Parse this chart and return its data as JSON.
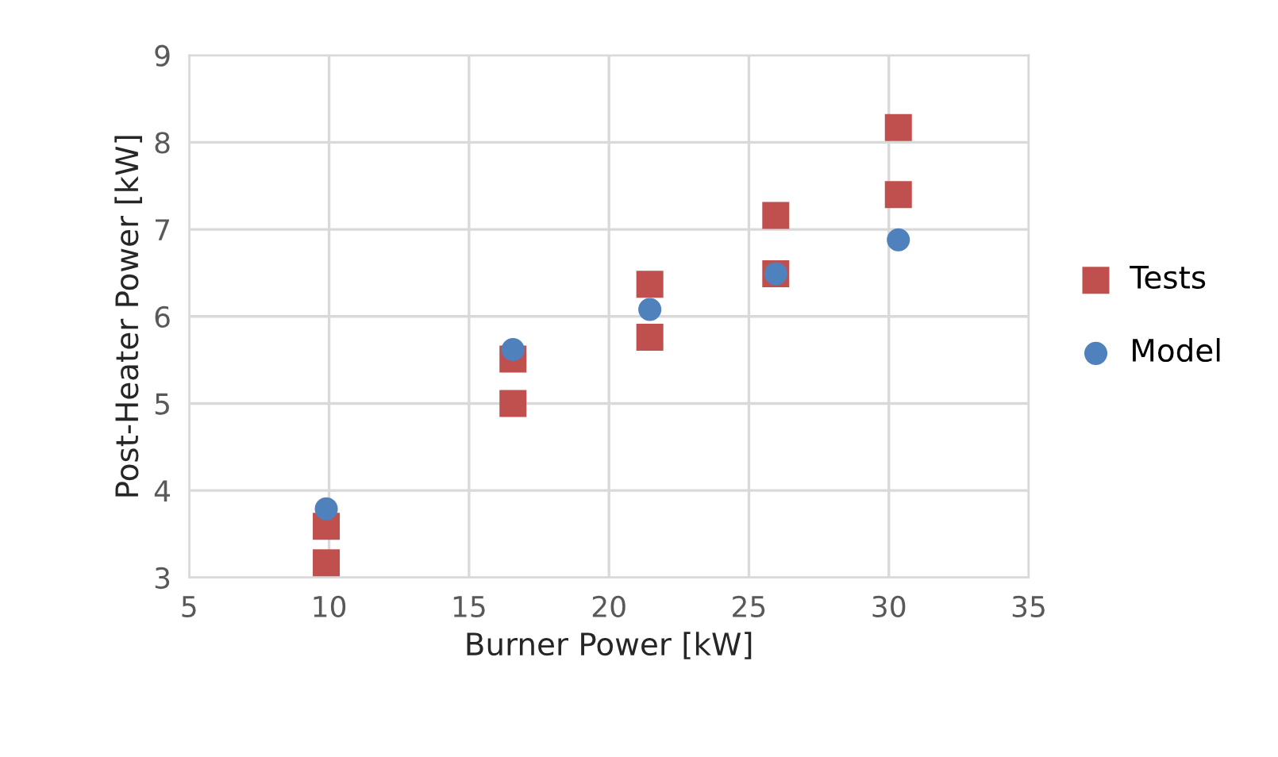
{
  "chart_data": {
    "type": "scatter",
    "xlabel": "Burner Power [kW]",
    "ylabel": "Post-Heater Power [kW]",
    "xlim": [
      5,
      35
    ],
    "xticks": [
      5,
      10,
      15,
      20,
      25,
      30,
      35
    ],
    "ylim": [
      3,
      9
    ],
    "yticks": [
      3,
      4,
      5,
      6,
      7,
      8,
      9
    ],
    "grid": true,
    "legend": "right",
    "series": [
      {
        "name": "Tests",
        "color": "#c0504d",
        "marker": "square",
        "x": [
          9.9,
          9.9,
          16.57,
          16.57,
          21.46,
          21.46,
          25.96,
          25.96,
          30.34,
          30.34
        ],
        "values": [
          3.17,
          3.59,
          5.0,
          5.51,
          5.76,
          6.37,
          7.16,
          6.49,
          8.17,
          7.4
        ]
      },
      {
        "name": "Model",
        "color": "#4f81bd",
        "marker": "circle",
        "x": [
          9.9,
          16.57,
          21.46,
          25.96,
          30.34
        ],
        "values": [
          3.79,
          5.62,
          6.08,
          6.49,
          6.88
        ]
      }
    ]
  }
}
